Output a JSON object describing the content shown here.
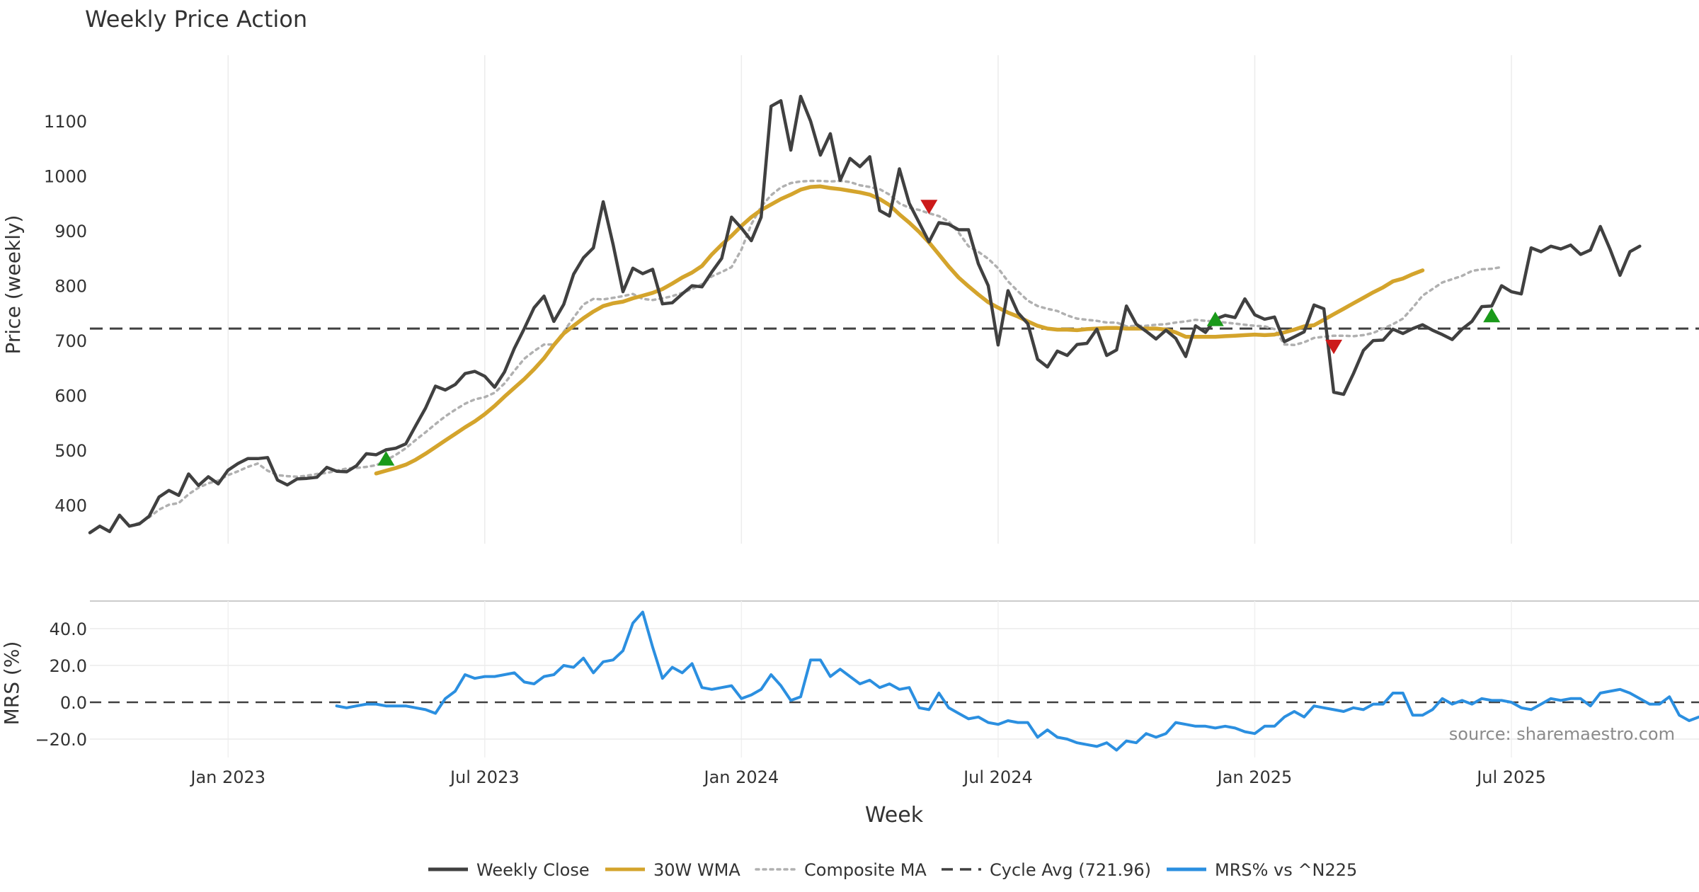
{
  "chart_data": {
    "type": "line",
    "title": "Weekly Price Action",
    "source": "source: sharemaestro.com",
    "xlabel": "Week",
    "x_ticks": [
      "Jan 2023",
      "Jul 2023",
      "Jan 2024",
      "Jul 2024",
      "Jan 2025",
      "Jul 2025"
    ],
    "x_tick_weeks": [
      14,
      40,
      66,
      92,
      118,
      144
    ],
    "x_range_weeks": [
      0,
      163
    ],
    "price_panel": {
      "ylabel": "Price (weekly)",
      "ylim": [
        330,
        1220
      ],
      "y_ticks": [
        400,
        500,
        600,
        700,
        800,
        900,
        1000,
        1100
      ],
      "y_tick_labels": [
        "400",
        "500",
        "600",
        "700",
        "800",
        "900",
        "1000",
        "1100"
      ],
      "series": [
        {
          "name": "Weekly Close",
          "color": "#404040",
          "start_week": 0,
          "values": [
            350,
            362,
            352,
            382,
            362,
            366,
            380,
            415,
            427,
            418,
            457,
            436,
            452,
            439,
            464,
            476,
            485,
            485,
            487,
            446,
            437,
            448,
            449,
            451,
            469,
            462,
            461,
            472,
            494,
            492,
            501,
            504,
            512,
            545,
            577,
            617,
            610,
            620,
            640,
            644,
            635,
            615,
            643,
            686,
            722,
            760,
            781,
            735,
            766,
            821,
            851,
            869,
            953,
            875,
            789,
            832,
            822,
            830,
            767,
            769,
            785,
            800,
            798,
            825,
            850,
            925,
            905,
            882,
            925,
            1127,
            1137,
            1047,
            1145,
            1100,
            1038,
            1077,
            992,
            1032,
            1017,
            1035,
            937,
            927,
            1013,
            950,
            915,
            880,
            915,
            912,
            902,
            902,
            840,
            800,
            692,
            791,
            751,
            731,
            666,
            652,
            681,
            673,
            693,
            695,
            721,
            673,
            683,
            763,
            730,
            717,
            703,
            719,
            704,
            671,
            727,
            715,
            739,
            746,
            742,
            776,
            747,
            739,
            743,
            698,
            707,
            716,
            765,
            758,
            606,
            602,
            640,
            682,
            700,
            701,
            721,
            713,
            722,
            729,
            719,
            711,
            702,
            721,
            735,
            762,
            763,
            800,
            789,
            785,
            869,
            862,
            872,
            867,
            874,
            857,
            865,
            908,
            866,
            819,
            862,
            872
          ]
        },
        {
          "name": "30W WMA",
          "color": "#d4a42c",
          "start_week": 29,
          "values": [
            458,
            463,
            468,
            474,
            483,
            494,
            506,
            518,
            530,
            542,
            553,
            566,
            581,
            598,
            614,
            630,
            648,
            668,
            692,
            713,
            727,
            741,
            753,
            763,
            768,
            771,
            777,
            782,
            787,
            794,
            804,
            815,
            824,
            836,
            857,
            875,
            891,
            909,
            925,
            938,
            948,
            958,
            966,
            975,
            980,
            981,
            978,
            976,
            973,
            970,
            966,
            958,
            947,
            930,
            915,
            898,
            879,
            857,
            835,
            815,
            799,
            784,
            770,
            760,
            751,
            744,
            735,
            727,
            722,
            720,
            720,
            719,
            721,
            722,
            723,
            723,
            722,
            722,
            722,
            722,
            720,
            715,
            707,
            707,
            707,
            707,
            708,
            709,
            710,
            711,
            710,
            711,
            715,
            720,
            726,
            728,
            738,
            748,
            758,
            768,
            778,
            788,
            797,
            808,
            813,
            821,
            828
          ]
        },
        {
          "name": "Composite MA",
          "color": "#b0b0b0",
          "start_week": 4,
          "values": [
            362,
            368,
            378,
            392,
            401,
            404,
            420,
            432,
            440,
            445,
            455,
            462,
            470,
            476,
            463,
            455,
            453,
            452,
            454,
            457,
            459,
            463,
            467,
            468,
            470,
            473,
            482,
            492,
            504,
            519,
            533,
            548,
            562,
            574,
            585,
            593,
            597,
            605,
            622,
            645,
            667,
            681,
            693,
            693,
            716,
            742,
            766,
            776,
            775,
            778,
            781,
            785,
            776,
            774,
            777,
            781,
            787,
            794,
            803,
            817,
            825,
            834,
            866,
            912,
            944,
            965,
            979,
            987,
            990,
            991,
            991,
            990,
            991,
            989,
            983,
            980,
            976,
            966,
            950,
            942,
            938,
            932,
            927,
            917,
            897,
            872,
            862,
            849,
            832,
            808,
            790,
            773,
            763,
            758,
            754,
            746,
            740,
            738,
            736,
            733,
            733,
            726,
            727,
            727,
            729,
            730,
            733,
            735,
            738,
            736,
            735,
            733,
            731,
            729,
            727,
            726,
            721,
            693,
            692,
            697,
            705,
            707,
            709,
            709,
            708,
            710,
            714,
            722,
            730,
            740,
            760,
            782,
            794,
            806,
            812,
            818,
            827,
            830,
            831,
            834
          ]
        },
        {
          "name": "Cycle Avg (721.96)",
          "color": "#404040",
          "value": 721.96
        }
      ],
      "markers": [
        {
          "type": "buy",
          "week": 30,
          "value": 484,
          "color": "#1a9a1a"
        },
        {
          "type": "sell",
          "week": 85,
          "value": 945,
          "color": "#cc1a1a"
        },
        {
          "type": "buy",
          "week": 114,
          "value": 738,
          "color": "#1a9a1a"
        },
        {
          "type": "sell",
          "week": 126,
          "value": 690,
          "color": "#cc1a1a"
        },
        {
          "type": "buy",
          "week": 142,
          "value": 745,
          "color": "#1a9a1a"
        }
      ]
    },
    "mrs_panel": {
      "ylabel": "MRS (%)",
      "ylim": [
        -30,
        55
      ],
      "y_ticks": [
        -20,
        0,
        20,
        40
      ],
      "y_tick_labels": [
        "−20.0",
        "0.0",
        "20.0",
        "40.0"
      ],
      "series": [
        {
          "name": "MRS% vs ^N225",
          "color": "#2b8fe0",
          "start_week": 25,
          "values": [
            -2,
            -3,
            -2,
            -1,
            -1,
            -2,
            -2,
            -2,
            -3,
            -4,
            -6,
            2,
            6,
            15,
            13,
            14,
            14,
            15,
            16,
            11,
            10,
            14,
            15,
            20,
            19,
            24,
            16,
            22,
            23,
            28,
            43,
            49,
            30,
            13,
            19,
            16,
            21,
            8,
            7,
            8,
            9,
            2,
            4,
            7,
            15,
            9,
            1,
            3,
            23,
            23,
            14,
            18,
            14,
            10,
            12,
            8,
            10,
            7,
            8,
            -3,
            -4,
            5,
            -3,
            -6,
            -9,
            -8,
            -11,
            -12,
            -10,
            -11,
            -11,
            -19,
            -15,
            -19,
            -20,
            -22,
            -23,
            -24,
            -22,
            -26,
            -21,
            -22,
            -17,
            -19,
            -17,
            -11,
            -12,
            -13,
            -13,
            -14,
            -13,
            -14,
            -16,
            -17,
            -13,
            -13,
            -8,
            -5,
            -8,
            -2,
            -3,
            -4,
            -5,
            -3,
            -4,
            -1,
            -1,
            5,
            5,
            -7,
            -7,
            -4,
            2,
            -1,
            1,
            -1,
            2,
            1,
            1,
            0,
            -3,
            -4,
            -1,
            2,
            1,
            2,
            2,
            -2,
            5,
            6,
            7,
            5,
            2,
            -1,
            -1,
            3,
            -7,
            -10,
            -8,
            -8
          ]
        },
        {
          "name": "Zero line",
          "color": "#404040",
          "value": 0
        }
      ]
    },
    "legend": {
      "placement": "bottom-center",
      "entries": [
        {
          "label": "Weekly Close",
          "color": "#404040",
          "style": "solid"
        },
        {
          "label": "30W WMA",
          "color": "#d4a42c",
          "style": "solid"
        },
        {
          "label": "Composite MA",
          "color": "#b0b0b0",
          "style": "dotted"
        },
        {
          "label": "Cycle Avg (721.96)",
          "color": "#404040",
          "style": "dashed"
        },
        {
          "label": "MRS% vs ^N225",
          "color": "#2b8fe0",
          "style": "solid"
        }
      ]
    }
  }
}
